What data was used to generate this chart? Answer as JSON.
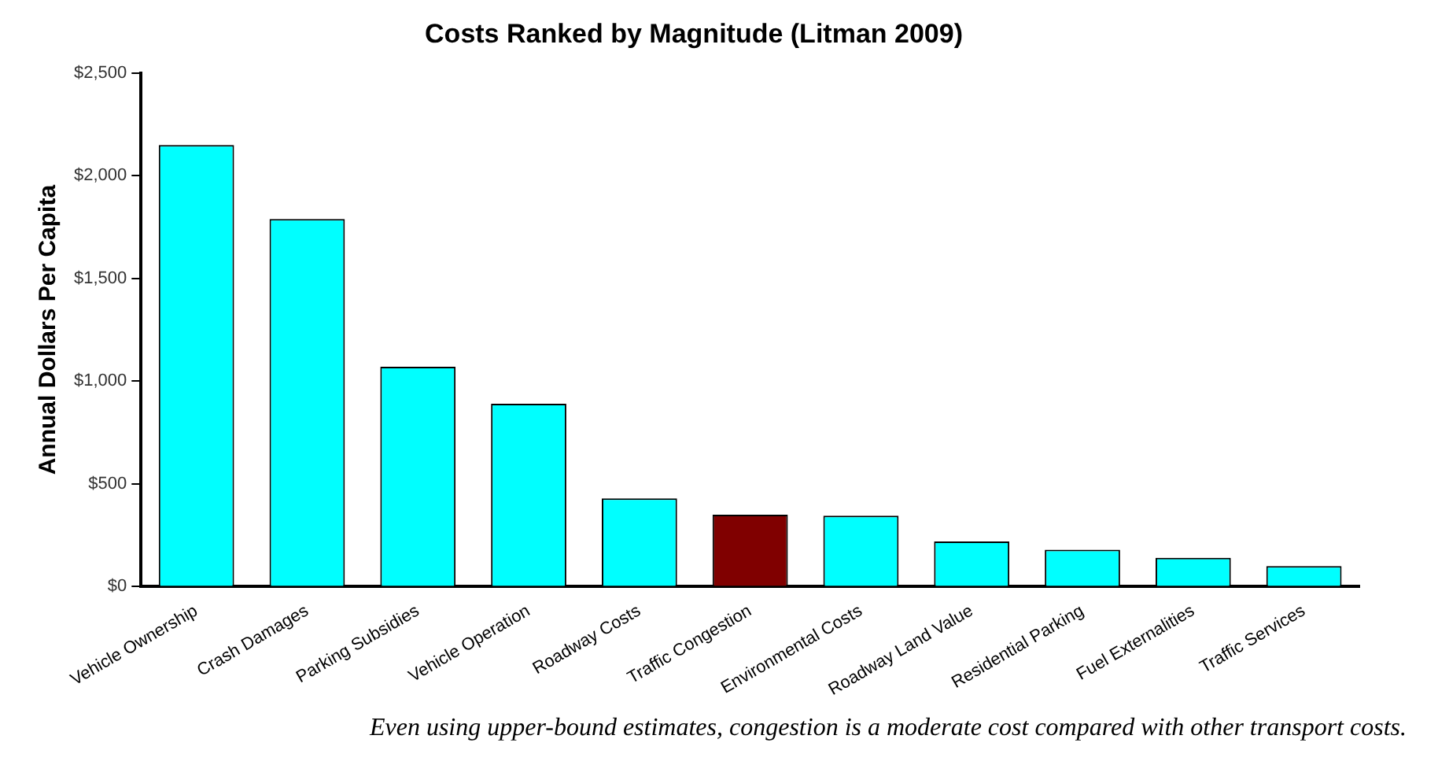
{
  "chart_data": {
    "type": "bar",
    "title": "Costs Ranked by Magnitude (Litman 2009)",
    "ylabel": "Annual Dollars Per Capita",
    "categories": [
      "Vehicle Ownership",
      "Crash Damages",
      "Parking Subsidies",
      "Vehicle Operation",
      "Roadway Costs",
      "Traffic Congestion",
      "Environmental Costs",
      "Roadway Land Value",
      "Residential Parking",
      "Fuel Externalities",
      "Traffic Services"
    ],
    "values": [
      2150,
      1790,
      1070,
      890,
      430,
      350,
      345,
      220,
      180,
      140,
      100
    ],
    "colors": [
      "#00ffff",
      "#00ffff",
      "#00ffff",
      "#00ffff",
      "#00ffff",
      "#800000",
      "#00ffff",
      "#00ffff",
      "#00ffff",
      "#00ffff",
      "#00ffff"
    ],
    "ylim": [
      0,
      2500
    ],
    "yticks": [
      {
        "value": 0,
        "label": "$0"
      },
      {
        "value": 500,
        "label": "$500"
      },
      {
        "value": 1000,
        "label": "$1,000"
      },
      {
        "value": 1500,
        "label": "$1,500"
      },
      {
        "value": 2000,
        "label": "$2,000"
      },
      {
        "value": 2500,
        "label": "$2,500"
      }
    ],
    "grid": false,
    "legend": false,
    "annotations": [
      "Even using upper-bound estimates, congestion is a moderate cost compared with other transport costs."
    ]
  }
}
